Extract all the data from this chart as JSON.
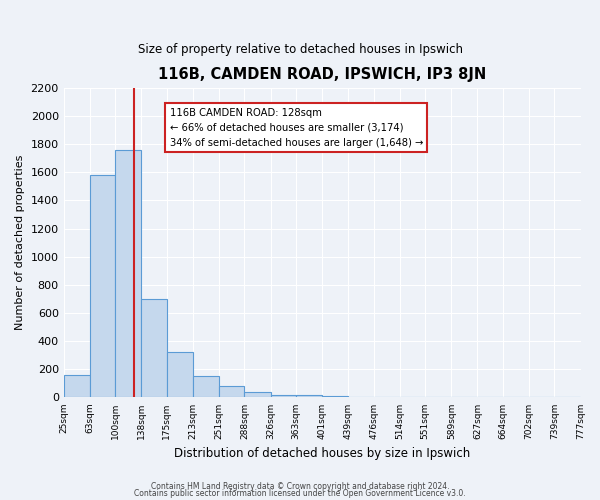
{
  "title": "116B, CAMDEN ROAD, IPSWICH, IP3 8JN",
  "subtitle": "Size of property relative to detached houses in Ipswich",
  "xlabel": "Distribution of detached houses by size in Ipswich",
  "ylabel": "Number of detached properties",
  "bin_labels": [
    "25sqm",
    "63sqm",
    "100sqm",
    "138sqm",
    "175sqm",
    "213sqm",
    "251sqm",
    "288sqm",
    "326sqm",
    "363sqm",
    "401sqm",
    "439sqm",
    "476sqm",
    "514sqm",
    "551sqm",
    "589sqm",
    "627sqm",
    "664sqm",
    "702sqm",
    "739sqm",
    "777sqm"
  ],
  "bin_values": [
    25,
    63,
    100,
    138,
    175,
    213,
    251,
    288,
    326,
    363,
    401,
    439,
    476,
    514,
    551,
    589,
    627,
    664,
    702,
    739,
    777
  ],
  "bar_heights": [
    160,
    1580,
    1760,
    700,
    320,
    155,
    80,
    40,
    20,
    15,
    10,
    0,
    0,
    0,
    0,
    0,
    0,
    0,
    0,
    0
  ],
  "bar_color": "#c5d8ed",
  "bar_edge_color": "#5b9bd5",
  "property_line_x": 128,
  "property_line_label": "116B CAMDEN ROAD: 128sqm",
  "annotation_line1": "← 66% of detached houses are smaller (3,174)",
  "annotation_line2": "34% of semi-detached houses are larger (1,648) →",
  "annotation_box_facecolor": "#ffffff",
  "annotation_box_edgecolor": "#cc2222",
  "vline_color": "#cc2222",
  "footer_line1": "Contains HM Land Registry data © Crown copyright and database right 2024.",
  "footer_line2": "Contains public sector information licensed under the Open Government Licence v3.0.",
  "background_color": "#eef2f8",
  "ylim": [
    0,
    2200
  ],
  "yticks": [
    0,
    200,
    400,
    600,
    800,
    1000,
    1200,
    1400,
    1600,
    1800,
    2000,
    2200
  ]
}
